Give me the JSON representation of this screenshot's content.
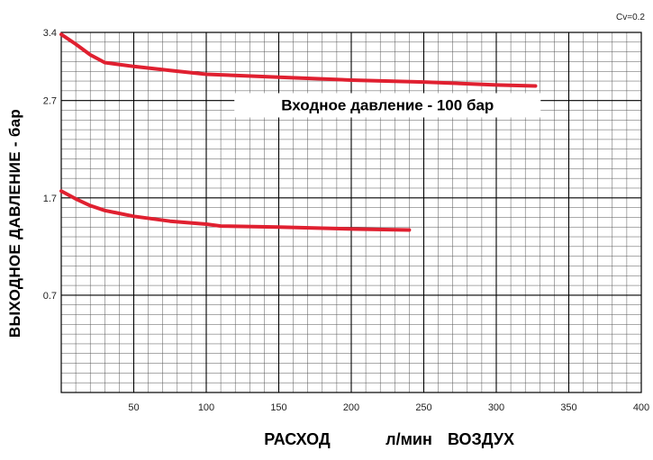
{
  "chart_data": {
    "type": "line",
    "title": "",
    "corner_note": "Cv=0.2",
    "xlabel_parts": [
      "РАСХОД",
      "л/мин",
      "ВОЗДУХ"
    ],
    "ylabel": "ВЫХОДНОЕ ДАВЛЕНИЕ - бар",
    "annotation": "Входное давление - 100 бар",
    "xlim": [
      0,
      400
    ],
    "ylim": [
      -0.3,
      3.4
    ],
    "x_ticks": [
      50,
      100,
      150,
      200,
      250,
      300,
      350,
      400
    ],
    "x_tick_labels": [
      "50",
      "100",
      "150",
      "200",
      "250",
      "300",
      "350",
      "400"
    ],
    "y_ticks": [
      0.7,
      1.7,
      2.7,
      3.4
    ],
    "y_tick_labels": [
      "0.7",
      "1.7",
      "2.7",
      "3.4"
    ],
    "grid": true,
    "series_color": "#e02030",
    "series": [
      {
        "x": [
          0,
          10,
          20,
          30,
          50,
          75,
          100,
          150,
          200,
          250,
          300,
          327
        ],
        "y": [
          3.38,
          3.28,
          3.17,
          3.09,
          3.05,
          3.01,
          2.97,
          2.94,
          2.91,
          2.89,
          2.86,
          2.85
        ]
      },
      {
        "x": [
          0,
          10,
          20,
          30,
          50,
          75,
          100,
          110,
          150,
          200,
          240
        ],
        "y": [
          1.77,
          1.69,
          1.62,
          1.57,
          1.51,
          1.46,
          1.43,
          1.41,
          1.4,
          1.38,
          1.37
        ]
      }
    ]
  }
}
